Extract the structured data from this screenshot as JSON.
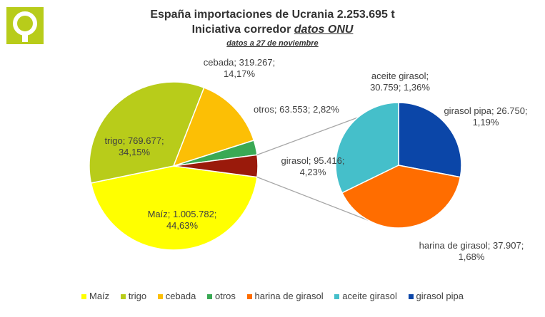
{
  "header": {
    "title_line1": "España importaciones de Ucrania 2.253.695 t",
    "title_line2_prefix": "Iniciativa corredor ",
    "title_line2_link": "datos ONU",
    "subtitle": "datos a 27 de noviembre"
  },
  "colors": {
    "logo": "#b8cc1a",
    "Maíz": "#ffff00",
    "trigo": "#b8cc1a",
    "cebada": "#fcbf05",
    "otros": "#3aa954",
    "girasol": "#9a1a0b",
    "harina de girasol": "#ff6d00",
    "aceite girasol": "#45bfca",
    "girasol pipa": "#0b46a8"
  },
  "chart_data": [
    {
      "type": "pie",
      "title": "España importaciones de Ucrania 2.253.695 t",
      "total": 2253695,
      "unit": "t",
      "slices": [
        {
          "name": "Maíz",
          "value": 1005782,
          "percent": 44.63,
          "label_line1": "Maíz; 1.005.782;",
          "label_line2": "44,63%"
        },
        {
          "name": "trigo",
          "value": 769677,
          "percent": 34.15,
          "label_line1": "trigo; 769.677;",
          "label_line2": "34,15%"
        },
        {
          "name": "cebada",
          "value": 319267,
          "percent": 14.17,
          "label_line1": "cebada; 319.267;",
          "label_line2": "14,17%"
        },
        {
          "name": "otros",
          "value": 63553,
          "percent": 2.82,
          "label_line1": "otros; 63.553; 2,82%",
          "label_line2": ""
        },
        {
          "name": "girasol",
          "value": 95416,
          "percent": 4.23,
          "label_line1": "girasol; 95.416;",
          "label_line2": "4,23%"
        }
      ]
    },
    {
      "type": "pie",
      "title": "",
      "breakdown_of": "girasol",
      "slices": [
        {
          "name": "girasol pipa",
          "value": 26750,
          "percent": 1.19,
          "label_line1": "girasol pipa; 26.750;",
          "label_line2": "1,19%"
        },
        {
          "name": "harina de girasol",
          "value": 37907,
          "percent": 1.68,
          "label_line1": "harina de girasol; 37.907;",
          "label_line2": "1,68%"
        },
        {
          "name": "aceite girasol",
          "value": 30759,
          "percent": 1.36,
          "label_line1": "aceite girasol;",
          "label_line2": "30.759; 1,36%"
        }
      ]
    }
  ],
  "legend": [
    "Maíz",
    "trigo",
    "cebada",
    "otros",
    "harina de girasol",
    "aceite girasol",
    "girasol pipa"
  ]
}
